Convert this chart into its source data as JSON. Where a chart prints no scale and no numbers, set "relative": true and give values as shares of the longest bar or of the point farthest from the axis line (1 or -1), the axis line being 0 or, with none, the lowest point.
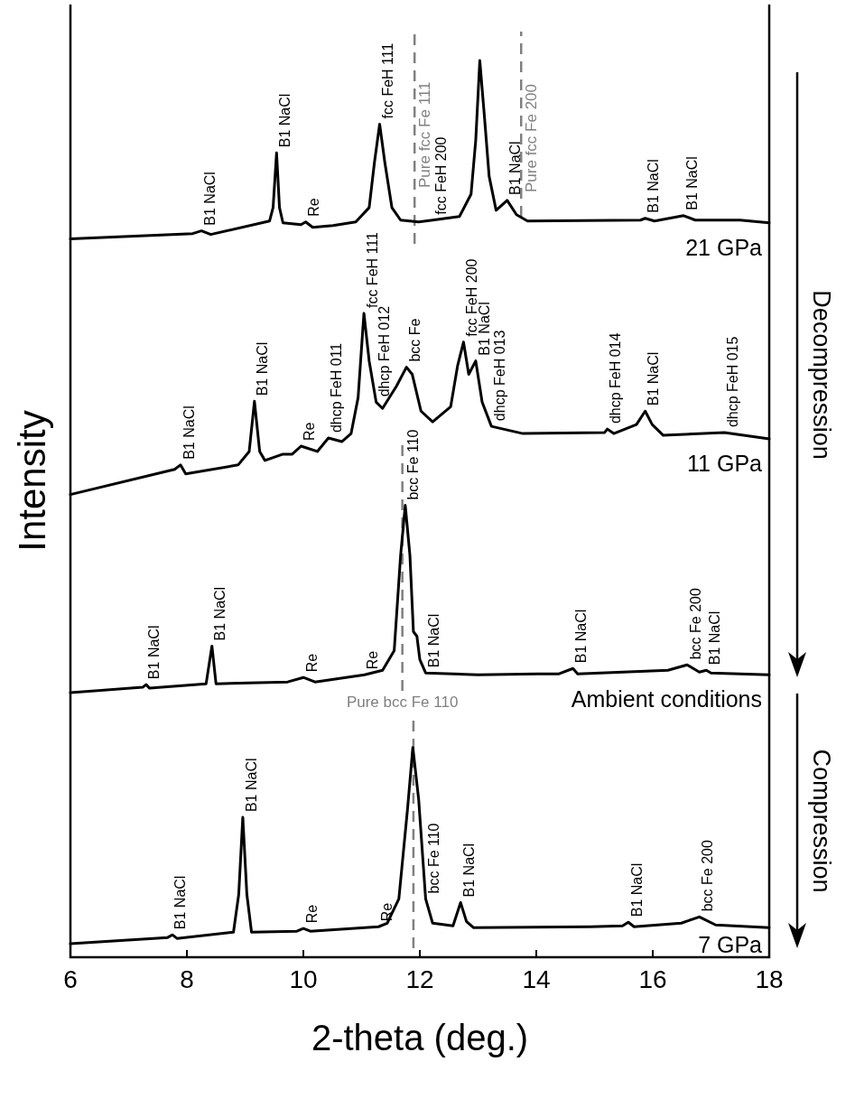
{
  "chart_data": {
    "type": "line",
    "relative": true,
    "xlabel": "2-theta (deg.)",
    "ylabel": "Intensity",
    "xlim": [
      6,
      18
    ],
    "xticks": [
      6,
      8,
      10,
      12,
      14,
      16,
      18
    ],
    "grid": false,
    "marker": "none",
    "line_style": "solid",
    "series": [
      {
        "name": "21 GPa",
        "color": "#000000",
        "x": [
          6.0,
          8.1,
          8.25,
          8.41,
          9.42,
          9.48,
          9.54,
          9.59,
          9.65,
          9.96,
          10.04,
          10.16,
          10.51,
          10.9,
          11.13,
          11.22,
          11.31,
          11.4,
          11.52,
          11.67,
          11.98,
          12.22,
          12.68,
          12.88,
          12.96,
          13.03,
          13.11,
          13.19,
          13.31,
          13.5,
          13.66,
          13.85,
          15.79,
          15.87,
          16.03,
          16.53,
          16.73,
          17.5,
          18.0
        ],
        "values": [
          0.801,
          0.807,
          0.81,
          0.806,
          0.821,
          0.836,
          0.897,
          0.836,
          0.819,
          0.817,
          0.82,
          0.814,
          0.816,
          0.82,
          0.836,
          0.886,
          0.929,
          0.886,
          0.836,
          0.822,
          0.82,
          0.822,
          0.826,
          0.851,
          0.911,
          1.0,
          0.937,
          0.871,
          0.833,
          0.844,
          0.828,
          0.821,
          0.822,
          0.824,
          0.821,
          0.827,
          0.822,
          0.822,
          0.819
        ]
      },
      {
        "name": "11 GPa",
        "color": "#000000",
        "x": [
          6.0,
          7.79,
          7.89,
          7.98,
          8.88,
          9.07,
          9.16,
          9.25,
          9.34,
          9.65,
          9.81,
          9.96,
          10.24,
          10.43,
          10.66,
          10.82,
          10.94,
          11.04,
          11.13,
          11.25,
          11.36,
          11.6,
          11.77,
          11.87,
          12.02,
          12.22,
          12.53,
          12.65,
          12.75,
          12.84,
          12.96,
          13.07,
          13.23,
          13.77,
          15.17,
          15.22,
          15.33,
          15.72,
          15.87,
          15.99,
          16.18,
          17.23,
          18.0
        ],
        "values": [
          0.516,
          0.544,
          0.549,
          0.539,
          0.549,
          0.564,
          0.62,
          0.564,
          0.554,
          0.561,
          0.561,
          0.57,
          0.564,
          0.579,
          0.575,
          0.584,
          0.624,
          0.718,
          0.665,
          0.619,
          0.612,
          0.637,
          0.658,
          0.65,
          0.609,
          0.597,
          0.614,
          0.66,
          0.686,
          0.65,
          0.665,
          0.619,
          0.592,
          0.584,
          0.585,
          0.589,
          0.584,
          0.594,
          0.609,
          0.594,
          0.582,
          0.585,
          0.578
        ]
      },
      {
        "name": "Ambient conditions",
        "color": "#000000",
        "x": [
          6.0,
          7.24,
          7.3,
          7.36,
          8.33,
          8.43,
          8.5,
          9.73,
          10.0,
          10.2,
          11.05,
          11.36,
          11.56,
          11.67,
          11.75,
          11.83,
          11.89,
          11.95,
          12.0,
          12.1,
          13.0,
          14.01,
          14.39,
          14.63,
          14.71,
          16.26,
          16.59,
          16.8,
          16.92,
          17.0,
          18.0
        ],
        "values": [
          0.295,
          0.301,
          0.304,
          0.3,
          0.305,
          0.347,
          0.305,
          0.307,
          0.312,
          0.307,
          0.315,
          0.32,
          0.342,
          0.448,
          0.504,
          0.448,
          0.363,
          0.358,
          0.332,
          0.317,
          0.315,
          0.316,
          0.316,
          0.322,
          0.316,
          0.32,
          0.326,
          0.318,
          0.32,
          0.317,
          0.315
        ]
      },
      {
        "name": "7 GPa",
        "color": "#000000",
        "x": [
          6.0,
          7.67,
          7.75,
          7.83,
          8.8,
          8.89,
          8.96,
          9.03,
          9.11,
          9.89,
          10.0,
          10.12,
          11.29,
          11.44,
          11.64,
          11.79,
          11.88,
          11.98,
          12.1,
          12.22,
          12.57,
          12.7,
          12.8,
          12.92,
          14.94,
          15.48,
          15.58,
          15.68,
          16.49,
          16.8,
          17.08,
          18.0
        ],
        "values": [
          0.015,
          0.022,
          0.025,
          0.021,
          0.028,
          0.07,
          0.156,
          0.07,
          0.028,
          0.029,
          0.032,
          0.029,
          0.034,
          0.038,
          0.065,
          0.166,
          0.234,
          0.176,
          0.065,
          0.038,
          0.035,
          0.061,
          0.04,
          0.033,
          0.034,
          0.035,
          0.039,
          0.034,
          0.038,
          0.045,
          0.036,
          0.033
        ]
      }
    ],
    "ref_lines": [
      {
        "axis": "x",
        "value": 11.91,
        "label": "Pure fcc Fe 111",
        "color": "#808080",
        "line_style": "dashed"
      },
      {
        "axis": "x",
        "value": 13.74,
        "label": "Pure fcc Fe 200",
        "color": "#808080",
        "line_style": "dashed"
      },
      {
        "axis": "x",
        "value": 11.7,
        "label": "Pure bcc Fe 110",
        "color": "#808080",
        "line_style": "dashed"
      },
      {
        "axis": "x",
        "value": 11.89,
        "color": "#808080",
        "line_style": "dashed"
      }
    ],
    "annotations": [
      {
        "text": "B1 NaCl",
        "x": 8.25,
        "y": 0.81
      },
      {
        "text": "B1 NaCl",
        "x": 9.54,
        "y": 0.897
      },
      {
        "text": "Re",
        "x": 10.04,
        "y": 0.82
      },
      {
        "text": "fcc FeH 111",
        "x": 11.31,
        "y": 0.929
      },
      {
        "text": "fcc FeH 200",
        "x": 12.22,
        "y": 0.822
      },
      {
        "text": "B1 NaCl",
        "x": 13.5,
        "y": 0.844
      },
      {
        "text": "B1 NaCl",
        "x": 15.87,
        "y": 0.824
      },
      {
        "text": "B1 NaCl",
        "x": 16.53,
        "y": 0.827
      },
      {
        "text": "B1 NaCl",
        "x": 7.89,
        "y": 0.549
      },
      {
        "text": "B1 NaCl",
        "x": 9.16,
        "y": 0.62
      },
      {
        "text": "Re",
        "x": 9.96,
        "y": 0.57
      },
      {
        "text": "dhcp FeH 011",
        "x": 10.43,
        "y": 0.579
      },
      {
        "text": "fcc FeH 111",
        "x": 11.04,
        "y": 0.718
      },
      {
        "text": "dhcp FeH 012",
        "x": 11.25,
        "y": 0.619
      },
      {
        "text": "bcc Fe",
        "x": 11.77,
        "y": 0.658
      },
      {
        "text": "fcc FeH 200",
        "x": 12.75,
        "y": 0.686
      },
      {
        "text": "B1 NaCl",
        "x": 12.96,
        "y": 0.665
      },
      {
        "text": "dhcp FeH 013",
        "x": 13.23,
        "y": 0.592
      },
      {
        "text": "dhcp FeH 014",
        "x": 15.22,
        "y": 0.589
      },
      {
        "text": "B1 NaCl",
        "x": 15.87,
        "y": 0.609
      },
      {
        "text": "dhcp FeH 015",
        "x": 17.23,
        "y": 0.585
      },
      {
        "text": "B1 NaCl",
        "x": 7.3,
        "y": 0.304
      },
      {
        "text": "B1 NaCl",
        "x": 8.43,
        "y": 0.347
      },
      {
        "text": "Re",
        "x": 10.0,
        "y": 0.312
      },
      {
        "text": "Re",
        "x": 11.05,
        "y": 0.315
      },
      {
        "text": "bcc Fe 110",
        "x": 11.75,
        "y": 0.504
      },
      {
        "text": "B1 NaCl",
        "x": 12.1,
        "y": 0.317
      },
      {
        "text": "B1 NaCl",
        "x": 14.63,
        "y": 0.322
      },
      {
        "text": "bcc Fe 200",
        "x": 16.59,
        "y": 0.326
      },
      {
        "text": "B1 NaCl",
        "x": 16.92,
        "y": 0.32
      },
      {
        "text": "B1 NaCl",
        "x": 7.75,
        "y": 0.025
      },
      {
        "text": "B1 NaCl",
        "x": 8.96,
        "y": 0.156
      },
      {
        "text": "Re",
        "x": 10.0,
        "y": 0.032
      },
      {
        "text": "Re",
        "x": 11.29,
        "y": 0.034
      },
      {
        "text": "bcc Fe 110",
        "x": 12.1,
        "y": 0.065
      },
      {
        "text": "B1 NaCl",
        "x": 12.7,
        "y": 0.061
      },
      {
        "text": "B1 NaCl",
        "x": 15.58,
        "y": 0.039
      },
      {
        "text": "bcc Fe 200",
        "x": 16.8,
        "y": 0.045
      },
      "Decompression",
      "Compression"
    ]
  }
}
